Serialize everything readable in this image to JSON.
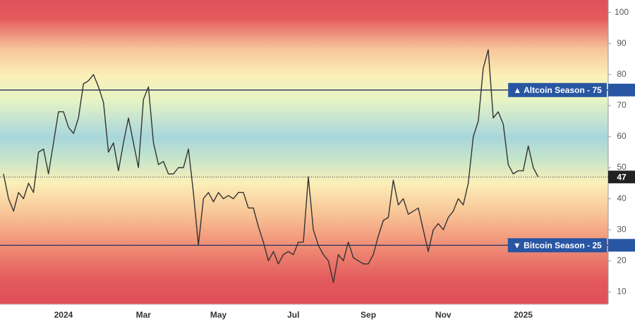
{
  "chart_data": {
    "type": "line",
    "categories": [
      null,
      null,
      null,
      null,
      null,
      null,
      null,
      null,
      null,
      null,
      null,
      null,
      "2024",
      null,
      null,
      null,
      null,
      null,
      null,
      null,
      null,
      null,
      null,
      null,
      null,
      null,
      null,
      null,
      "Mar",
      null,
      null,
      null,
      null,
      null,
      null,
      null,
      null,
      null,
      null,
      null,
      null,
      null,
      null,
      "May",
      null,
      null,
      null,
      null,
      null,
      null,
      null,
      null,
      null,
      null,
      null,
      null,
      null,
      null,
      "Jul",
      null,
      null,
      null,
      null,
      null,
      null,
      null,
      null,
      null,
      null,
      null,
      null,
      null,
      null,
      "Sep",
      null,
      null,
      null,
      null,
      null,
      null,
      null,
      null,
      null,
      null,
      null,
      null,
      null,
      null,
      "Nov",
      null,
      null,
      null,
      null,
      null,
      null,
      null,
      null,
      null,
      null,
      null,
      null,
      null,
      null,
      null,
      "2025",
      null,
      null,
      null,
      null,
      null,
      null,
      null,
      null,
      null,
      null,
      null,
      null,
      null,
      null,
      null,
      null,
      null
    ],
    "values": [
      48,
      40,
      36,
      42,
      40,
      45,
      42,
      55,
      56,
      48,
      58,
      68,
      68,
      63,
      61,
      66,
      77,
      78,
      80,
      76,
      71,
      55,
      58,
      49,
      58,
      66,
      58,
      50,
      72,
      76,
      58,
      51,
      52,
      48,
      48,
      50,
      50,
      56,
      42,
      25,
      40,
      42,
      39,
      42,
      40,
      41,
      40,
      42,
      42,
      37,
      37,
      31,
      26,
      20,
      23,
      19,
      22,
      23,
      22,
      26,
      26,
      47,
      30,
      25,
      22,
      20,
      13,
      22,
      20,
      26,
      21,
      20,
      19,
      19,
      22,
      28,
      33,
      34,
      46,
      38,
      40,
      35,
      36,
      37,
      30,
      23,
      30,
      32,
      30,
      34,
      36,
      40,
      38,
      45,
      60,
      65,
      82,
      88,
      66,
      68,
      64,
      51,
      48,
      49,
      49,
      57,
      50,
      47,
      null,
      null,
      null,
      null,
      null,
      null,
      null,
      null,
      null,
      null,
      null,
      null,
      null,
      null
    ],
    "color": "#333333",
    "ylim": [
      6,
      104
    ],
    "yticks": [
      10,
      20,
      30,
      40,
      50,
      60,
      70,
      80,
      90,
      100
    ],
    "grid": false,
    "annotations": [
      {
        "label": "▲ Altcoin Season - 75",
        "value": 75
      },
      {
        "label": "▼ Bitcoin Season - 25",
        "value": 25
      }
    ]
  }
}
